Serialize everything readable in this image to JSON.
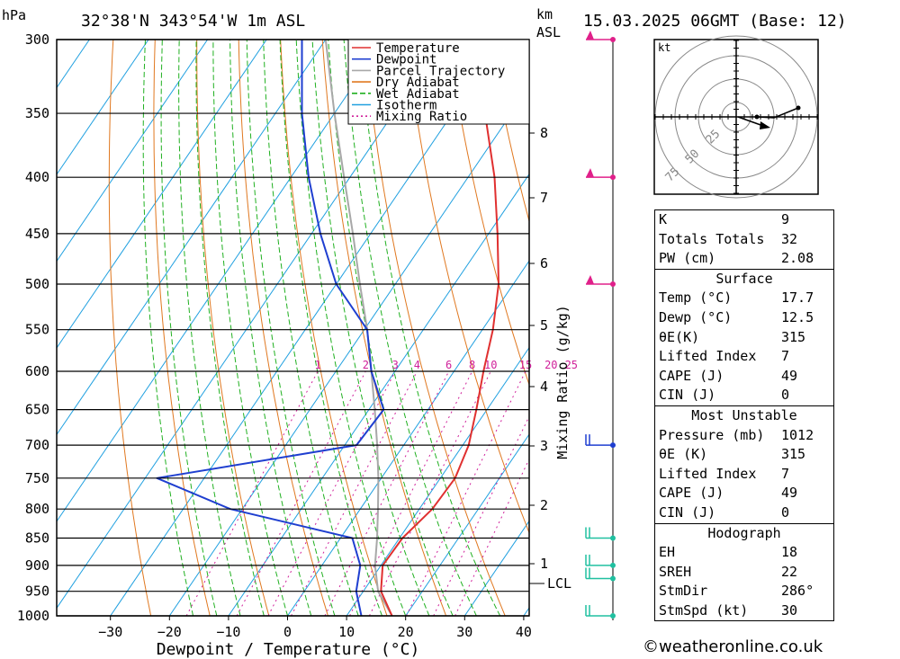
{
  "header": {
    "pressure_unit": "hPa",
    "location": "32°38'N  343°54'W  1m  ASL",
    "height_unit": "km",
    "height_unit_sub": "ASL",
    "datetime": "15.03.2025  06GMT  (Base: 12)"
  },
  "legend": [
    "Temperature",
    "Dewpoint",
    "Parcel Trajectory",
    "Dry Adiabat",
    "Wet Adiabat",
    "Isotherm",
    "Mixing Ratio"
  ],
  "colors": {
    "temperature": "#e03030",
    "dewpoint": "#1f3fd0",
    "parcel": "#a8a8a8",
    "dry_adiabat": "#e07820",
    "wet_adiabat": "#20b020",
    "isotherm": "#20a0e0",
    "mixing_ratio": "#d0209a",
    "wind": "#20c0a0"
  },
  "chart_data": {
    "type": "skew-t log-p",
    "xlabel": "Dewpoint / Temperature (°C)",
    "ylabel": "Mixing Ratio (g/kg)",
    "pressure_levels": [
      300,
      350,
      400,
      450,
      500,
      550,
      600,
      650,
      700,
      750,
      800,
      850,
      900,
      950,
      1000
    ],
    "temperature_ticks": [
      -30,
      -20,
      -10,
      0,
      10,
      20,
      30,
      40
    ],
    "height_ticks_km": [
      8,
      7,
      6,
      5,
      4,
      3,
      2,
      1
    ],
    "lcl_label": "LCL",
    "mixing_ratio_labels": [
      "1",
      "2",
      "3",
      "4",
      "6",
      "8",
      "10",
      "15",
      "20",
      "25"
    ],
    "temperature_profile": [
      {
        "p": 1000,
        "t": 17.7
      },
      {
        "p": 950,
        "t": 13.0
      },
      {
        "p": 900,
        "t": 10.3
      },
      {
        "p": 850,
        "t": 10.5
      },
      {
        "p": 800,
        "t": 12.2
      },
      {
        "p": 750,
        "t": 12.5
      },
      {
        "p": 700,
        "t": 11.0
      },
      {
        "p": 650,
        "t": 8.2
      },
      {
        "p": 600,
        "t": 5.0
      },
      {
        "p": 550,
        "t": 1.8
      },
      {
        "p": 500,
        "t": -2.5
      },
      {
        "p": 450,
        "t": -8.5
      },
      {
        "p": 400,
        "t": -15.5
      },
      {
        "p": 350,
        "t": -24.5
      },
      {
        "p": 300,
        "t": -33.8
      }
    ],
    "dewpoint_profile": [
      {
        "p": 1000,
        "t": 12.5
      },
      {
        "p": 950,
        "t": 8.8
      },
      {
        "p": 900,
        "t": 6.5
      },
      {
        "p": 850,
        "t": 2.0
      },
      {
        "p": 800,
        "t": -22.0
      },
      {
        "p": 750,
        "t": -38.0
      },
      {
        "p": 700,
        "t": -8.0
      },
      {
        "p": 650,
        "t": -7.5
      },
      {
        "p": 600,
        "t": -14.0
      },
      {
        "p": 550,
        "t": -19.5
      },
      {
        "p": 500,
        "t": -30.0
      },
      {
        "p": 450,
        "t": -38.5
      },
      {
        "p": 400,
        "t": -47.0
      },
      {
        "p": 350,
        "t": -55.5
      },
      {
        "p": 300,
        "t": -64.0
      }
    ],
    "parcel_profile": [
      {
        "p": 1000,
        "t": 17.7
      },
      {
        "p": 950,
        "t": 12.5
      },
      {
        "p": 900,
        "t": 9.0
      },
      {
        "p": 850,
        "t": 6.2
      },
      {
        "p": 800,
        "t": 3.0
      },
      {
        "p": 750,
        "t": -0.5
      },
      {
        "p": 700,
        "t": -4.5
      },
      {
        "p": 650,
        "t": -9.0
      },
      {
        "p": 600,
        "t": -14.0
      },
      {
        "p": 550,
        "t": -19.5
      },
      {
        "p": 500,
        "t": -26.0
      },
      {
        "p": 450,
        "t": -33.0
      },
      {
        "p": 400,
        "t": -41.0
      },
      {
        "p": 350,
        "t": -50.0
      },
      {
        "p": 300,
        "t": -60.0
      }
    ],
    "wind_barbs_at_pressure": [
      300,
      400,
      500,
      700,
      850,
      900,
      925,
      1000
    ],
    "hodograph": {
      "unit": "kt",
      "ring_labels": [
        "25",
        "50",
        "75"
      ]
    }
  },
  "indices": {
    "general": [
      {
        "label": "K",
        "value": "9"
      },
      {
        "label": "Totals Totals",
        "value": "32"
      },
      {
        "label": "PW (cm)",
        "value": "2.08"
      }
    ],
    "surface_title": "Surface",
    "surface": [
      {
        "label": "Temp (°C)",
        "value": "17.7"
      },
      {
        "label": "Dewp (°C)",
        "value": "12.5"
      },
      {
        "label": "θE(K)",
        "value": "315"
      },
      {
        "label": "Lifted Index",
        "value": "7"
      },
      {
        "label": "CAPE (J)",
        "value": "49"
      },
      {
        "label": "CIN (J)",
        "value": "0"
      }
    ],
    "unstable_title": "Most Unstable",
    "unstable": [
      {
        "label": "Pressure (mb)",
        "value": "1012"
      },
      {
        "label": "θE (K)",
        "value": "315"
      },
      {
        "label": "Lifted Index",
        "value": "7"
      },
      {
        "label": "CAPE (J)",
        "value": "49"
      },
      {
        "label": "CIN (J)",
        "value": "0"
      }
    ],
    "hodograph_title": "Hodograph",
    "hodograph": [
      {
        "label": "EH",
        "value": "18"
      },
      {
        "label": "SREH",
        "value": "22"
      },
      {
        "label": "StmDir",
        "value": "286°"
      },
      {
        "label": "StmSpd (kt)",
        "value": "30"
      }
    ]
  },
  "credit": "©weatheronline.co.uk"
}
